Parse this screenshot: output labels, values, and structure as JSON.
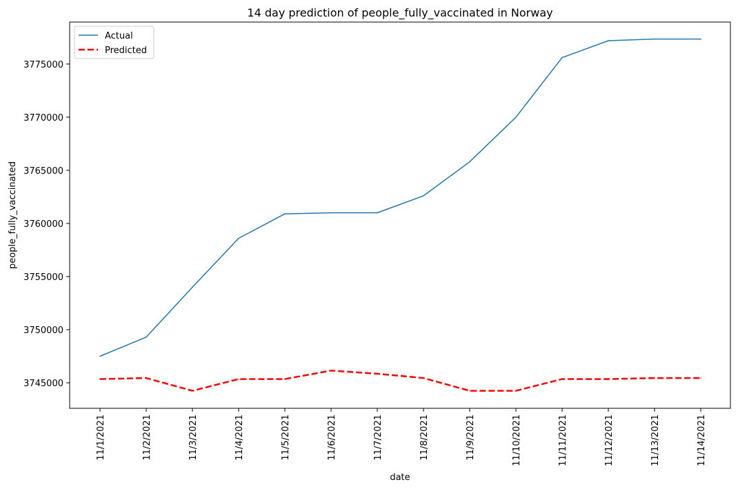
{
  "chart_data": {
    "type": "line",
    "title": "14 day prediction of people_fully_vaccinated in Norway",
    "xlabel": "date",
    "ylabel": "people_fully_vaccinated",
    "categories": [
      "11/1/2021",
      "11/2/2021",
      "11/3/2021",
      "11/4/2021",
      "11/5/2021",
      "11/6/2021",
      "11/7/2021",
      "11/8/2021",
      "11/9/2021",
      "11/10/2021",
      "11/11/2021",
      "11/12/2021",
      "11/13/2021",
      "11/14/2021"
    ],
    "series": [
      {
        "name": "Actual",
        "color": "#1f77b4",
        "style": "solid",
        "values": [
          3747500,
          3749300,
          3754000,
          3758600,
          3760900,
          3761000,
          3761000,
          3762600,
          3765800,
          3770000,
          3775600,
          3777200,
          3777350,
          3777350
        ]
      },
      {
        "name": "Predicted",
        "color": "#ff0000",
        "style": "dashed",
        "values": [
          3745350,
          3745450,
          3744250,
          3745350,
          3745350,
          3746150,
          3745850,
          3745450,
          3744250,
          3744250,
          3745350,
          3745350,
          3745450,
          3745450
        ]
      }
    ],
    "yticks": [
      3745000,
      3750000,
      3755000,
      3760000,
      3765000,
      3770000,
      3775000
    ],
    "ylim": [
      3742600,
      3778950
    ],
    "grid": false,
    "legend": "upper-left"
  }
}
